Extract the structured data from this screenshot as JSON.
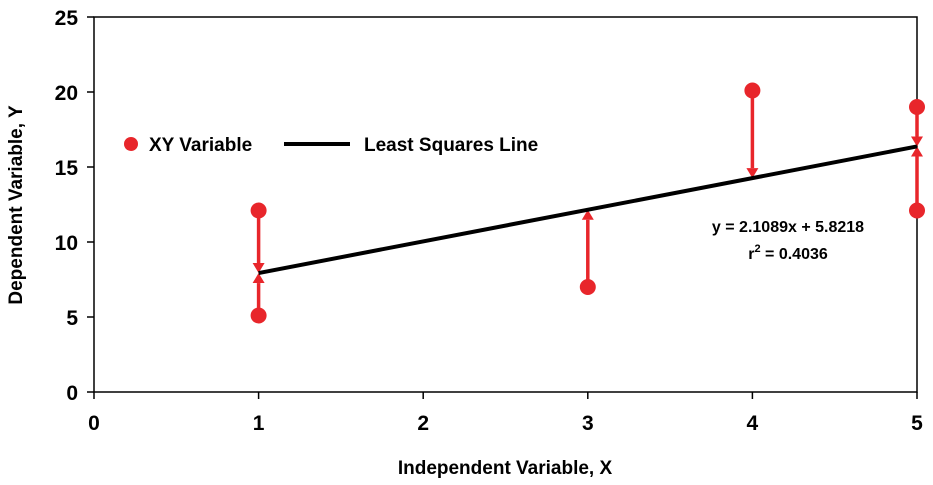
{
  "chart_data": {
    "type": "scatter",
    "xlabel": "Independent Variable, X",
    "ylabel": "Dependent Variable, Y",
    "xlim": [
      0,
      5
    ],
    "ylim": [
      0,
      25
    ],
    "xticks": [
      "0",
      "1",
      "2",
      "3",
      "4",
      "5"
    ],
    "yticks": [
      "0",
      "5",
      "10",
      "15",
      "20",
      "25"
    ],
    "grid": false,
    "legend_position": "top-left",
    "series": [
      {
        "name": "XY Variable",
        "kind": "points",
        "color": "#e8262b",
        "x": [
          1,
          1,
          3,
          4,
          5,
          5
        ],
        "y": [
          12.1,
          5.1,
          7.0,
          20.1,
          19.0,
          12.1
        ]
      },
      {
        "name": "Least Squares Line",
        "kind": "line",
        "color": "#000000",
        "x": [
          1,
          5
        ],
        "y": [
          7.93,
          16.37
        ]
      }
    ],
    "residuals": [
      {
        "x": 1,
        "from": 12.1,
        "to": 7.93
      },
      {
        "x": 1,
        "from": 5.1,
        "to": 7.93
      },
      {
        "x": 3,
        "from": 7.0,
        "to": 12.15
      },
      {
        "x": 4,
        "from": 20.1,
        "to": 14.26
      },
      {
        "x": 5,
        "from": 19.0,
        "to": 16.37
      },
      {
        "x": 5,
        "from": 12.1,
        "to": 16.37
      }
    ],
    "annotations": {
      "equation": "y = 2.1089x + 5.8218",
      "r2_prefix": "r",
      "r2_sup": "2",
      "r2_value": " = 0.4036"
    }
  }
}
